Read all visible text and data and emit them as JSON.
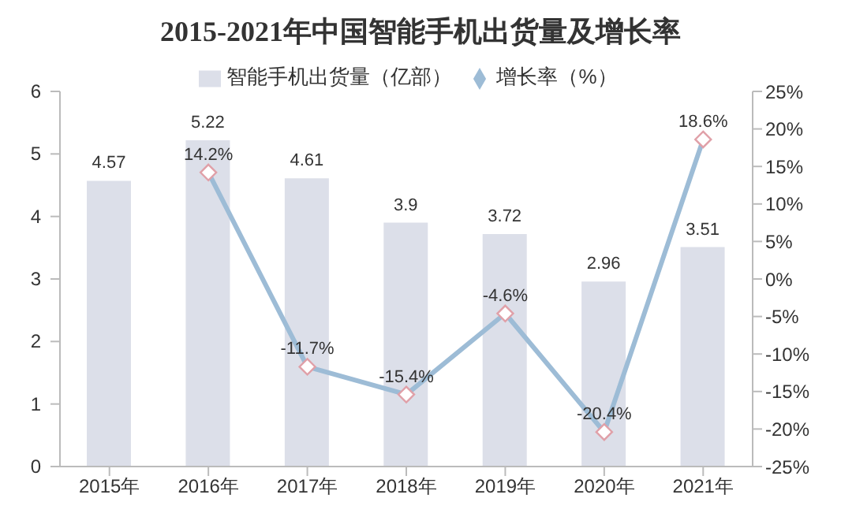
{
  "chart_data": {
    "type": "bar",
    "title": "2015-2021年中国智能手机出货量及增长率",
    "categories": [
      "2015年",
      "2016年",
      "2017年",
      "2018年",
      "2019年",
      "2020年",
      "2021年"
    ],
    "series": [
      {
        "name": "智能手机出货量（亿部）",
        "color": "#dcdfe9",
        "values": [
          4.57,
          5.22,
          4.61,
          3.9,
          3.72,
          2.96,
          3.51
        ],
        "value_labels": [
          "4.57",
          "5.22",
          "4.61",
          "3.9",
          "3.72",
          "2.96",
          "3.51"
        ]
      },
      {
        "name": "增长率（%）",
        "type": "line",
        "axis": "y2",
        "color": "#9dbcd6",
        "values": [
          null,
          14.2,
          -11.7,
          -15.4,
          -4.6,
          -20.4,
          18.6
        ],
        "value_labels": [
          null,
          "14.2%",
          "-11.7%",
          "-15.4%",
          "-4.6%",
          "-20.4%",
          "18.6%"
        ]
      }
    ],
    "ylim": [
      0,
      6
    ],
    "yticks": [
      0,
      1,
      2,
      3,
      4,
      5,
      6
    ],
    "y2lim": [
      -25,
      25
    ],
    "y2ticks": [
      {
        "value": -25,
        "label": "-25%"
      },
      {
        "value": -20,
        "label": "-20%"
      },
      {
        "value": -15,
        "label": "-15%"
      },
      {
        "value": -10,
        "label": "-10%"
      },
      {
        "value": -5,
        "label": "-5%"
      },
      {
        "value": 0,
        "label": "0%"
      },
      {
        "value": 5,
        "label": "5%"
      },
      {
        "value": 10,
        "label": "10%"
      },
      {
        "value": 15,
        "label": "15%"
      },
      {
        "value": 20,
        "label": "20%"
      },
      {
        "value": 25,
        "label": "25%"
      }
    ],
    "marker": "diamond",
    "legend": "top"
  }
}
